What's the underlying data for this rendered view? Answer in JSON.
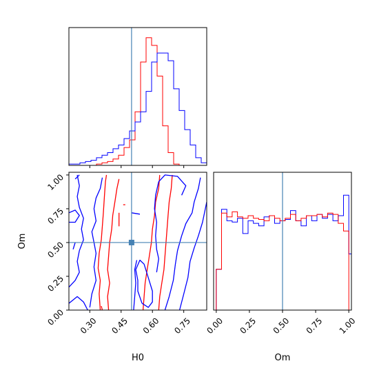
{
  "colors": {
    "red": "#ff0000",
    "blue": "#0000ff",
    "truth": "#4682b4"
  },
  "chart_data": {
    "type": "corner",
    "parameters": [
      "H0",
      "Om"
    ],
    "truths": {
      "H0": 0.5,
      "Om": 0.5
    },
    "panels": [
      {
        "id": "hist-H0",
        "type": "histogram",
        "parameter": "H0",
        "xlim": [
          0.2,
          0.86
        ],
        "x_ticks": [
          0.3,
          0.45,
          0.6,
          0.75
        ],
        "bins_start": 0.2,
        "bin_width": 0.0264,
        "series": [
          {
            "color": "red",
            "counts": [
              0,
              0,
              0,
              0,
              0,
              0.01,
              0.02,
              0.03,
              0.05,
              0.08,
              0.14,
              0.2,
              0.42,
              0.81,
              1.0,
              0.94,
              0.7,
              0.31,
              0.1,
              0.01,
              0,
              0,
              0,
              0,
              0
            ]
          },
          {
            "color": "blue",
            "counts": [
              0.01,
              0.01,
              0.02,
              0.03,
              0.04,
              0.06,
              0.08,
              0.1,
              0.13,
              0.16,
              0.21,
              0.27,
              0.34,
              0.42,
              0.58,
              0.81,
              0.88,
              0.88,
              0.82,
              0.6,
              0.43,
              0.28,
              0.16,
              0.06,
              0.02
            ]
          }
        ]
      },
      {
        "id": "contour-H0-Om",
        "type": "contour",
        "x_parameter": "H0",
        "y_parameter": "Om",
        "xlim": [
          0.2,
          0.86
        ],
        "ylim": [
          0,
          1.02
        ],
        "x_ticks": [
          0.3,
          0.45,
          0.6,
          0.75
        ],
        "y_ticks": [
          0.0,
          0.25,
          0.5,
          0.75,
          1.0
        ],
        "x_tick_labels": [
          "0.30",
          "0.45",
          "0.60",
          "0.75"
        ],
        "y_tick_labels": [
          "0.00",
          "0.25",
          "0.50",
          "0.75",
          "1.00"
        ],
        "xlabel": "H0",
        "ylabel": "Om",
        "series": [
          {
            "color": "red",
            "contours": [
              [
                [
                  0.35,
                  0.0
                ],
                [
                  0.345,
                  0.12
                ],
                [
                  0.35,
                  0.22
                ],
                [
                  0.34,
                  0.31
                ],
                [
                  0.345,
                  0.42
                ],
                [
                  0.355,
                  0.52
                ],
                [
                  0.36,
                  0.62
                ],
                [
                  0.365,
                  0.72
                ],
                [
                  0.37,
                  0.84
                ],
                [
                  0.375,
                  0.95
                ],
                [
                  0.38,
                  1.0
                ]
              ],
              [
                [
                  0.39,
                  0.0
                ],
                [
                  0.385,
                  0.1
                ],
                [
                  0.395,
                  0.2
                ],
                [
                  0.385,
                  0.3
                ],
                [
                  0.39,
                  0.4
                ],
                [
                  0.395,
                  0.5
                ],
                [
                  0.405,
                  0.6
                ],
                [
                  0.41,
                  0.7
                ],
                [
                  0.42,
                  0.8
                ],
                [
                  0.43,
                  0.9
                ],
                [
                  0.44,
                  0.97
                ]
              ],
              [
                [
                  0.555,
                  0.0
                ],
                [
                  0.56,
                  0.1
                ],
                [
                  0.565,
                  0.2
                ],
                [
                  0.575,
                  0.3
                ],
                [
                  0.585,
                  0.4
                ],
                [
                  0.595,
                  0.5
                ],
                [
                  0.6,
                  0.6
                ],
                [
                  0.61,
                  0.7
                ],
                [
                  0.615,
                  0.8
                ],
                [
                  0.63,
                  0.9
                ],
                [
                  0.635,
                  1.0
                ]
              ],
              [
                [
                  0.63,
                  0.0
                ],
                [
                  0.635,
                  0.1
                ],
                [
                  0.645,
                  0.2
                ],
                [
                  0.655,
                  0.3
                ],
                [
                  0.66,
                  0.4
                ],
                [
                  0.665,
                  0.5
                ],
                [
                  0.67,
                  0.6
                ],
                [
                  0.675,
                  0.7
                ],
                [
                  0.68,
                  0.8
                ],
                [
                  0.69,
                  0.9
                ],
                [
                  0.695,
                  1.0
                ]
              ],
              [
                [
                  0.44,
                  0.72
                ],
                [
                  0.44,
                  0.62
                ]
              ],
              [
                [
                  0.46,
                  0.78
                ],
                [
                  0.47,
                  0.78
                ]
              ],
              [
                [
                  0.355,
                  0.03
                ],
                [
                  0.36,
                  0.0
                ]
              ]
            ]
          },
          {
            "color": "blue",
            "contours": [
              [
                [
                  0.2,
                  0.17
                ],
                [
                  0.23,
                  0.22
                ],
                [
                  0.25,
                  0.28
                ],
                [
                  0.24,
                  0.36
                ],
                [
                  0.25,
                  0.44
                ],
                [
                  0.27,
                  0.52
                ],
                [
                  0.26,
                  0.6
                ],
                [
                  0.27,
                  0.68
                ],
                [
                  0.25,
                  0.76
                ],
                [
                  0.24,
                  0.84
                ],
                [
                  0.25,
                  0.92
                ],
                [
                  0.24,
                  1.0
                ]
              ],
              [
                [
                  0.2,
                  0.65
                ],
                [
                  0.23,
                  0.65
                ],
                [
                  0.25,
                  0.7
                ],
                [
                  0.23,
                  0.74
                ],
                [
                  0.2,
                  0.72
                ]
              ],
              [
                [
                  0.2,
                  0.05
                ],
                [
                  0.24,
                  0.1
                ],
                [
                  0.27,
                  0.06
                ],
                [
                  0.29,
                  0.0
                ]
              ],
              [
                [
                  0.3,
                  0.02
                ],
                [
                  0.31,
                  0.12
                ],
                [
                  0.33,
                  0.22
                ],
                [
                  0.32,
                  0.32
                ],
                [
                  0.33,
                  0.42
                ],
                [
                  0.32,
                  0.5
                ],
                [
                  0.31,
                  0.58
                ],
                [
                  0.33,
                  0.66
                ],
                [
                  0.32,
                  0.75
                ],
                [
                  0.33,
                  0.83
                ],
                [
                  0.35,
                  0.9
                ],
                [
                  0.36,
                  0.98
                ]
              ],
              [
                [
                  0.23,
                  0.97
                ],
                [
                  0.25,
                  1.0
                ]
              ],
              [
                [
                  0.55,
                  0.05
                ],
                [
                  0.53,
                  0.14
                ],
                [
                  0.53,
                  0.22
                ],
                [
                  0.52,
                  0.3
                ],
                [
                  0.54,
                  0.37
                ],
                [
                  0.56,
                  0.34
                ],
                [
                  0.58,
                  0.24
                ],
                [
                  0.6,
                  0.14
                ],
                [
                  0.6,
                  0.06
                ],
                [
                  0.58,
                  0.02
                ],
                [
                  0.55,
                  0.05
                ]
              ],
              [
                [
                  0.51,
                  0.0
                ],
                [
                  0.515,
                  0.1
                ],
                [
                  0.52,
                  0.2
                ],
                [
                  0.515,
                  0.3
                ],
                [
                  0.525,
                  0.37
                ]
              ],
              [
                [
                  0.62,
                  0.28
                ],
                [
                  0.63,
                  0.38
                ],
                [
                  0.62,
                  0.45
                ],
                [
                  0.615,
                  0.55
                ],
                [
                  0.62,
                  0.65
                ],
                [
                  0.61,
                  0.75
                ],
                [
                  0.615,
                  0.85
                ],
                [
                  0.63,
                  0.95
                ],
                [
                  0.66,
                  1.0
                ],
                [
                  0.72,
                  0.99
                ],
                [
                  0.76,
                  0.92
                ],
                [
                  0.74,
                  0.85
                ]
              ],
              [
                [
                  0.66,
                  0.0
                ],
                [
                  0.68,
                  0.1
                ],
                [
                  0.7,
                  0.22
                ],
                [
                  0.71,
                  0.34
                ],
                [
                  0.72,
                  0.44
                ],
                [
                  0.74,
                  0.55
                ],
                [
                  0.76,
                  0.64
                ],
                [
                  0.79,
                  0.72
                ],
                [
                  0.8,
                  0.8
                ],
                [
                  0.82,
                  0.9
                ],
                [
                  0.83,
                  0.98
                ]
              ],
              [
                [
                  0.73,
                  0.0
                ],
                [
                  0.75,
                  0.12
                ],
                [
                  0.77,
                  0.24
                ],
                [
                  0.78,
                  0.36
                ],
                [
                  0.8,
                  0.46
                ],
                [
                  0.82,
                  0.55
                ],
                [
                  0.84,
                  0.65
                ],
                [
                  0.86,
                  0.8
                ]
              ],
              [
                [
                  0.5,
                  0.72
                ],
                [
                  0.54,
                  0.71
                ]
              ],
              [
                [
                  0.22,
                  0.45
                ],
                [
                  0.23,
                  0.5
                ]
              ]
            ]
          }
        ]
      },
      {
        "id": "hist-Om",
        "type": "histogram",
        "parameter": "Om",
        "xlim": [
          -0.02,
          1.02
        ],
        "x_ticks": [
          0.0,
          0.25,
          0.5,
          0.75,
          1.0
        ],
        "x_tick_labels": [
          "0.00",
          "0.25",
          "0.50",
          "0.75",
          "1.00"
        ],
        "xlabel": "Om",
        "bins_start": 0.0,
        "bin_width": 0.04,
        "series": [
          {
            "color": "blue",
            "counts": [
              0.32,
              0.79,
              0.7,
              0.69,
              0.72,
              0.6,
              0.7,
              0.68,
              0.66,
              0.73,
              0.74,
              0.68,
              0.7,
              0.71,
              0.78,
              0.7,
              0.66,
              0.74,
              0.7,
              0.75,
              0.72,
              0.75,
              0.7,
              0.74,
              0.9,
              0.44
            ]
          },
          {
            "color": "red",
            "counts": [
              0.32,
              0.76,
              0.73,
              0.77,
              0.73,
              0.72,
              0.74,
              0.72,
              0.71,
              0.7,
              0.74,
              0.72,
              0.7,
              0.72,
              0.75,
              0.7,
              0.72,
              0.74,
              0.74,
              0.75,
              0.73,
              0.76,
              0.75,
              0.68,
              0.62,
              0.0
            ]
          }
        ]
      }
    ]
  }
}
